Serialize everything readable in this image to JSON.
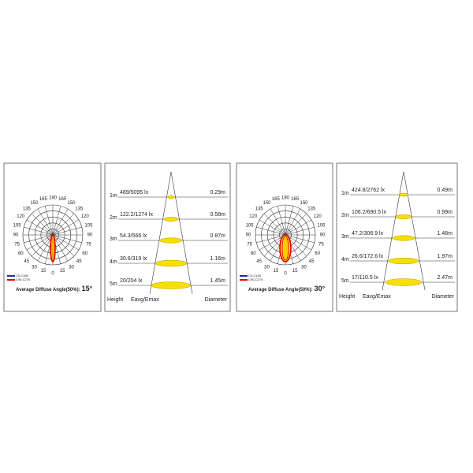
{
  "panels": [
    {
      "polar": {
        "angle_labels": [
          "0",
          "15",
          "30",
          "45",
          "60",
          "75",
          "90",
          "105",
          "120",
          "135",
          "150",
          "165",
          "180"
        ],
        "legend": [
          "C0-C180",
          "C90-C270"
        ],
        "caption": "Average Diffuse Angle(50%):",
        "angle": "15°"
      },
      "cone": {
        "headers": [
          "Height",
          "Eavg/Emax",
          "Diameter"
        ],
        "rows": [
          {
            "height": "1m",
            "illuminance": "489/5095 lx",
            "diameter": "0.29m"
          },
          {
            "height": "2m",
            "illuminance": "122.2/1274 lx",
            "diameter": "0.58m"
          },
          {
            "height": "3m",
            "illuminance": "54.3/566 lx",
            "diameter": "0.87m"
          },
          {
            "height": "4m",
            "illuminance": "30.6/319 lx",
            "diameter": "1.16m"
          },
          {
            "height": "5m",
            "illuminance": "20/204 lx",
            "diameter": "1.45m"
          }
        ]
      }
    },
    {
      "polar": {
        "angle_labels": [
          "0",
          "15",
          "30",
          "45",
          "60",
          "75",
          "90",
          "105",
          "120",
          "135",
          "150",
          "165",
          "180"
        ],
        "legend": [
          "C0-C180",
          "C90-C270"
        ],
        "caption": "Average Diffuse Angle(50%):",
        "angle": "30°"
      },
      "cone": {
        "headers": [
          "Height",
          "Eavg/Emax",
          "Diameter"
        ],
        "rows": [
          {
            "height": "1m",
            "illuminance": "424.8/2762 lx",
            "diameter": "0.49m"
          },
          {
            "height": "2m",
            "illuminance": "106.2/690.5 lx",
            "diameter": "0.99m"
          },
          {
            "height": "3m",
            "illuminance": "47.2/306.9 lx",
            "diameter": "1.48m"
          },
          {
            "height": "4m",
            "illuminance": "26.6/172.6 lx",
            "diameter": "1.97m"
          },
          {
            "height": "5m",
            "illuminance": "17/110.5 lx",
            "diameter": "2.47m"
          }
        ]
      }
    }
  ]
}
